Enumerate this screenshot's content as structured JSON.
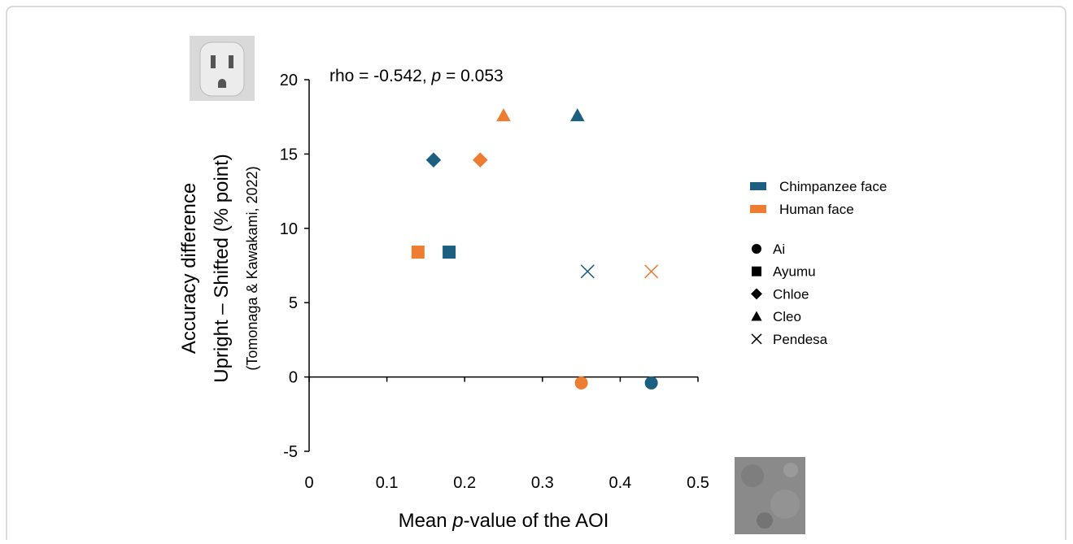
{
  "chart_data": {
    "type": "scatter",
    "annotation_parts": [
      "rho = -0.542, ",
      "p",
      " = 0.053"
    ],
    "x_label_parts": [
      "Mean ",
      "p",
      "-value of the AOI"
    ],
    "y_label_lines": [
      "Accuracy difference",
      "Upright – Shifted (% point)",
      "(Tomonaga & Kawakami, 2022)"
    ],
    "xlim": [
      0,
      0.5
    ],
    "xticks": [
      0,
      0.1,
      0.2,
      0.3,
      0.4,
      0.5
    ],
    "ylim": [
      -5,
      20
    ],
    "yticks": [
      -5,
      0,
      5,
      10,
      15,
      20
    ],
    "individuals": [
      {
        "name": "Ai",
        "marker": "circle"
      },
      {
        "name": "Ayumu",
        "marker": "square"
      },
      {
        "name": "Chloe",
        "marker": "diamond"
      },
      {
        "name": "Cleo",
        "marker": "triangle"
      },
      {
        "name": "Pendesa",
        "marker": "x"
      }
    ],
    "series": [
      {
        "name": "Chimpanzee face",
        "color": "#1d5f80",
        "x": [
          0.44,
          0.18,
          0.16,
          0.345,
          0.358
        ],
        "y": [
          -0.4,
          8.4,
          14.6,
          17.6,
          7.1
        ]
      },
      {
        "name": "Human face",
        "color": "#ed7d31",
        "x": [
          0.35,
          0.14,
          0.22,
          0.25,
          0.44
        ],
        "y": [
          -0.4,
          8.4,
          14.6,
          17.6,
          7.1
        ]
      }
    ]
  }
}
